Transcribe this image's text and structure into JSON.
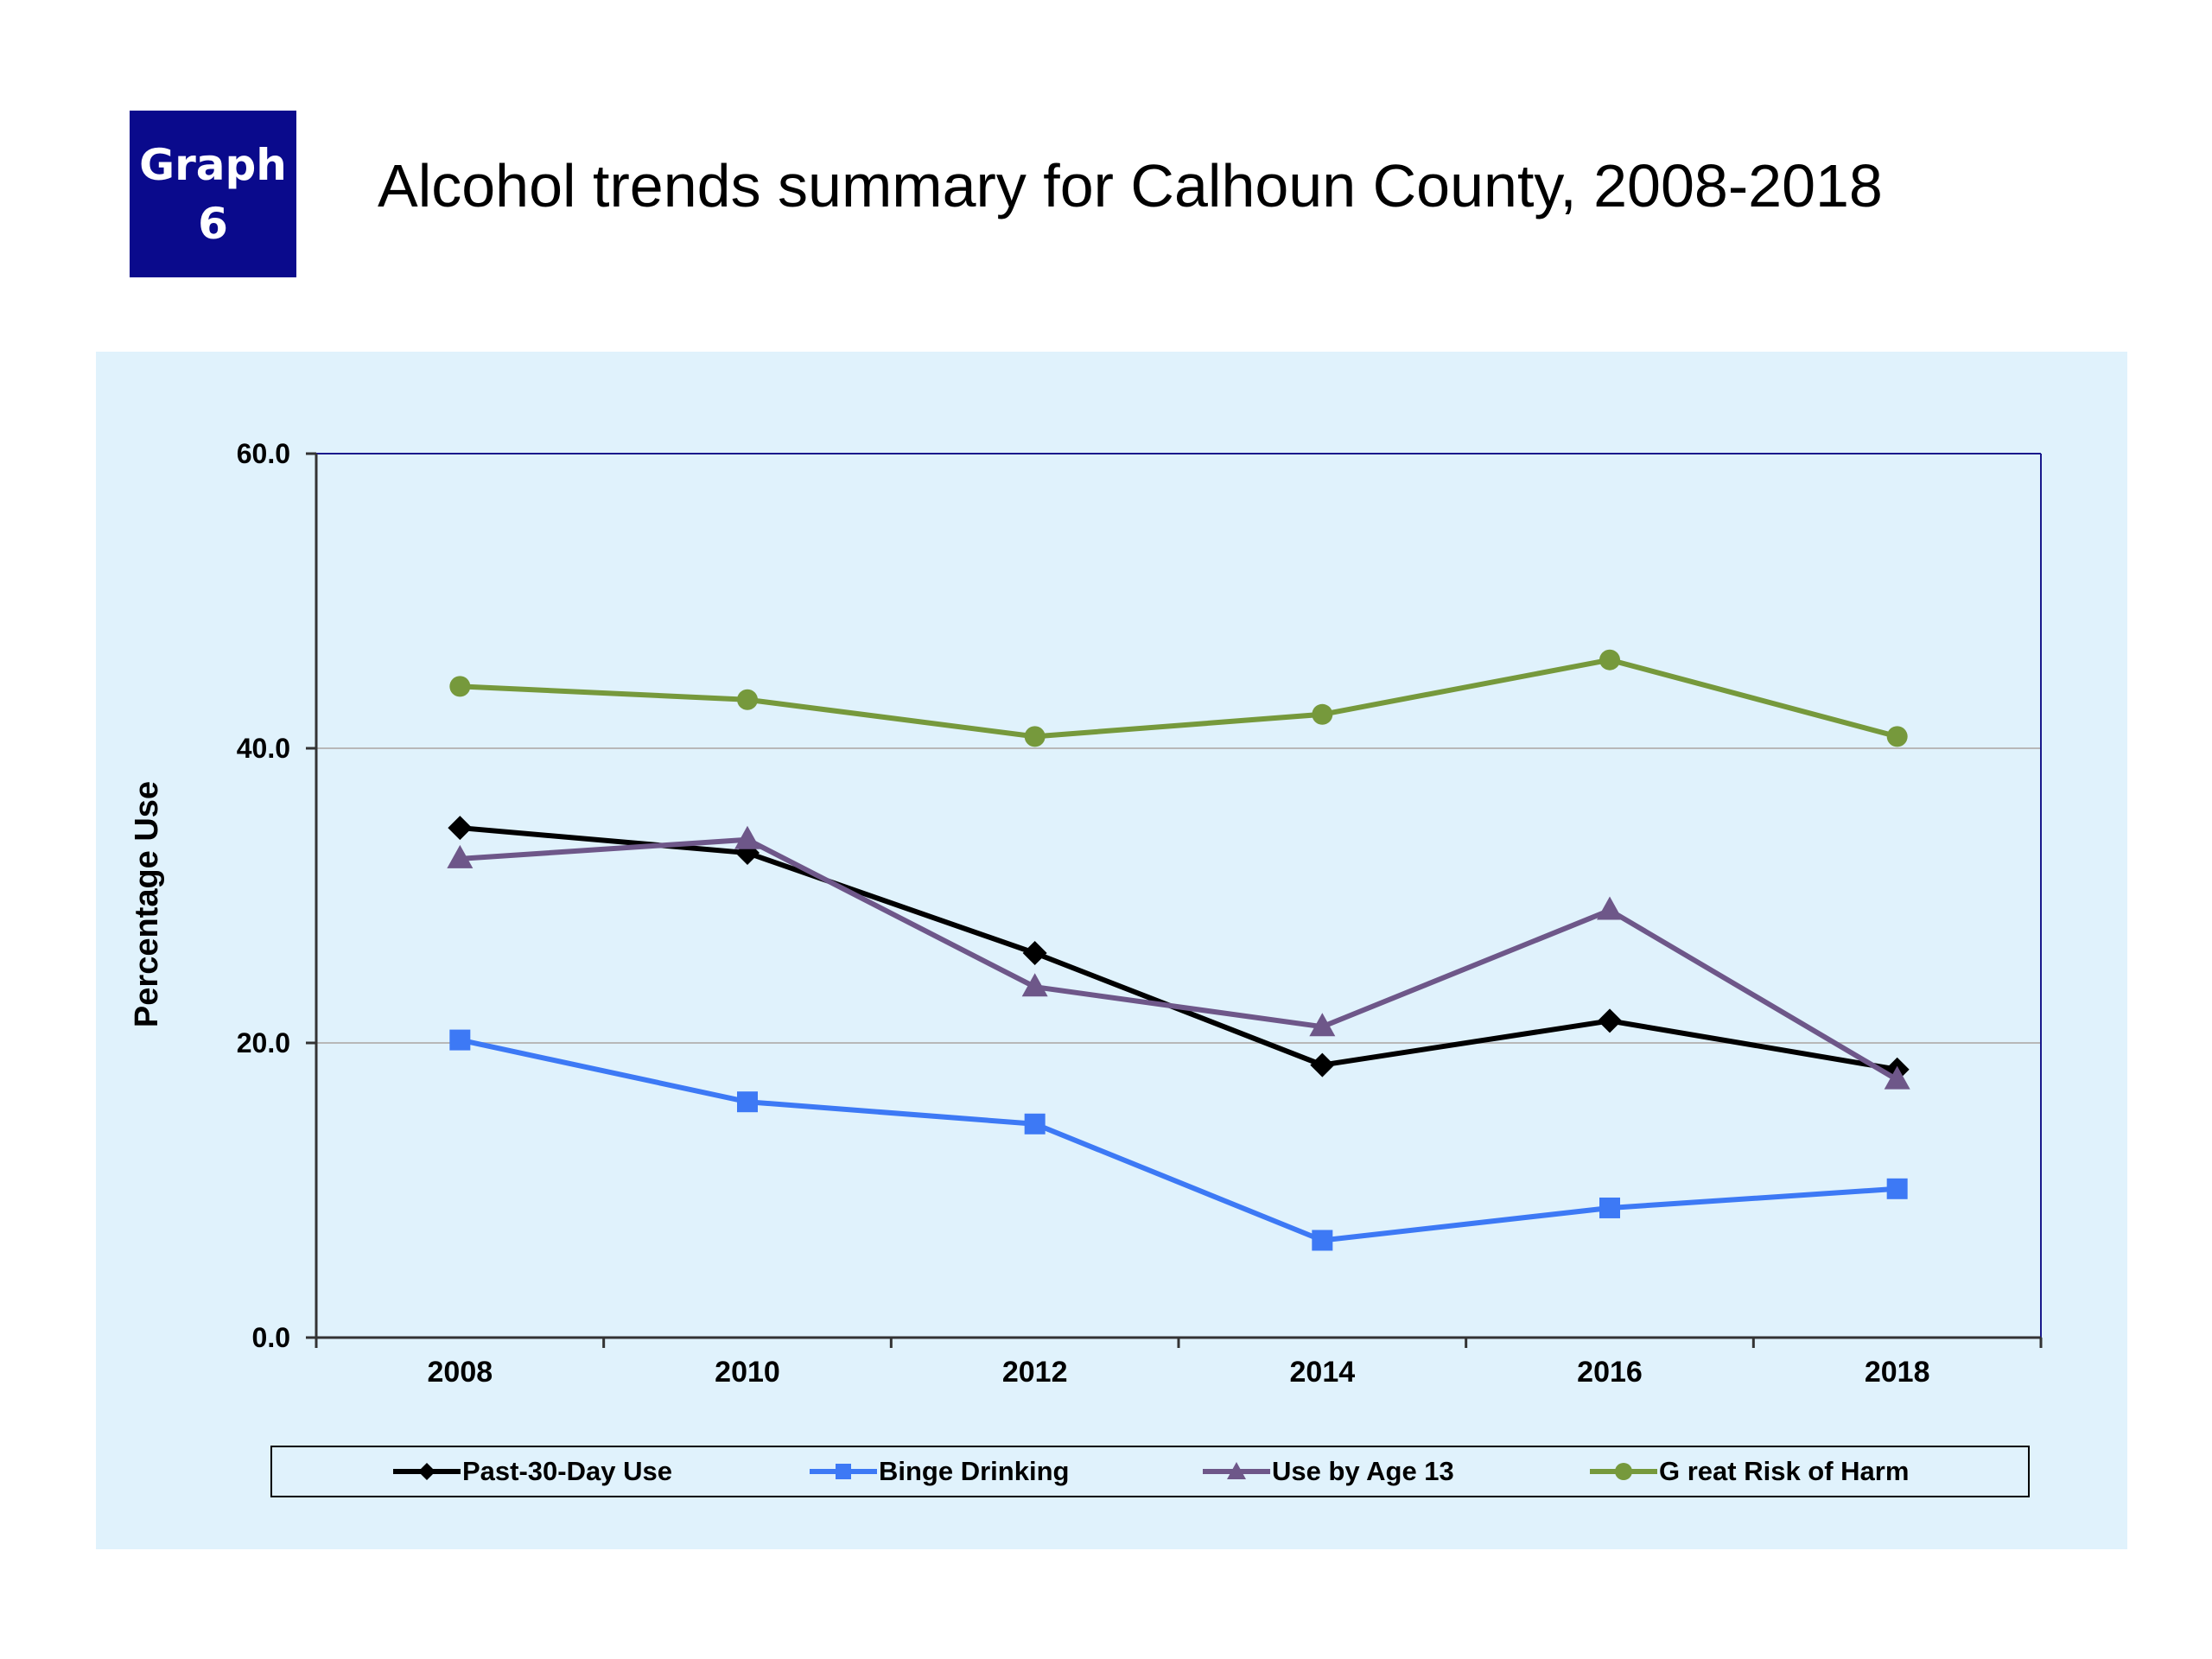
{
  "badge": {
    "line1": "Graph",
    "line2": "6"
  },
  "title": "Alcohol trends summary for Calhoun County, 2008-2018",
  "chart_data": {
    "type": "line",
    "title": "",
    "xlabel": "",
    "ylabel": "Percentage Use",
    "categories": [
      "2008",
      "2010",
      "2012",
      "2014",
      "2016",
      "2018"
    ],
    "yticks": [
      "0.0",
      "20.0",
      "40.0",
      "60.0"
    ],
    "ylim": [
      0,
      60
    ],
    "grid": "horizontal",
    "legend_position": "bottom",
    "background": "#e0f2fc",
    "series": [
      {
        "name": "Past-30-Day Use",
        "values": [
          34.6,
          32.9,
          26.1,
          18.5,
          21.5,
          18.2
        ],
        "color": "#000000",
        "marker": "diamond"
      },
      {
        "name": "Binge Drinking",
        "values": [
          20.2,
          16.0,
          14.5,
          6.6,
          8.8,
          10.1
        ],
        "color": "#3d79f5",
        "marker": "square"
      },
      {
        "name": "Use by Age 13",
        "values": [
          32.5,
          33.8,
          23.8,
          21.1,
          29.0,
          17.5
        ],
        "color": "#6e5789",
        "marker": "triangle"
      },
      {
        "name": "G reat Risk of Harm",
        "values": [
          44.2,
          43.3,
          40.8,
          42.3,
          46.0,
          40.8
        ],
        "color": "#76993c",
        "marker": "circle"
      }
    ]
  }
}
